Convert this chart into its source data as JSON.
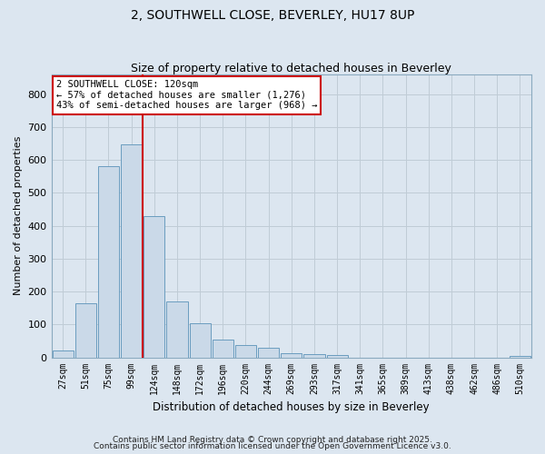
{
  "title_line1": "2, SOUTHWELL CLOSE, BEVERLEY, HU17 8UP",
  "title_line2": "Size of property relative to detached houses in Beverley",
  "xlabel": "Distribution of detached houses by size in Beverley",
  "ylabel": "Number of detached properties",
  "bar_labels": [
    "27sqm",
    "51sqm",
    "75sqm",
    "99sqm",
    "124sqm",
    "148sqm",
    "172sqm",
    "196sqm",
    "220sqm",
    "244sqm",
    "269sqm",
    "293sqm",
    "317sqm",
    "341sqm",
    "365sqm",
    "389sqm",
    "413sqm",
    "438sqm",
    "462sqm",
    "486sqm",
    "510sqm"
  ],
  "bar_values": [
    20,
    165,
    580,
    648,
    430,
    170,
    103,
    55,
    38,
    30,
    13,
    9,
    7,
    0,
    0,
    0,
    0,
    0,
    0,
    0,
    5
  ],
  "bar_color": "#cad9e8",
  "bar_edgecolor": "#6a9cbf",
  "vline_color": "#cc0000",
  "vline_x": 3.5,
  "annotation_text": "2 SOUTHWELL CLOSE: 120sqm\n← 57% of detached houses are smaller (1,276)\n43% of semi-detached houses are larger (968) →",
  "annotation_box_edgecolor": "#cc0000",
  "annotation_box_facecolor": "#ffffff",
  "ylim": [
    0,
    860
  ],
  "yticks": [
    0,
    100,
    200,
    300,
    400,
    500,
    600,
    700,
    800
  ],
  "grid_color": "#c0ccd6",
  "background_color": "#dce6f0",
  "plot_bg_color": "#dce6f0",
  "footer_line1": "Contains HM Land Registry data © Crown copyright and database right 2025.",
  "footer_line2": "Contains public sector information licensed under the Open Government Licence v3.0."
}
